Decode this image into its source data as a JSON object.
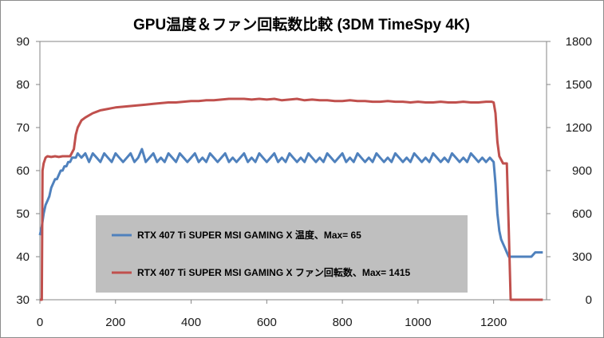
{
  "chart_data": {
    "type": "line",
    "title": "GPU温度＆ファン回転数比較 (3DM TimeSpy 4K)",
    "xlabel": "",
    "ylabel": "",
    "y2label": "",
    "xlim": [
      0,
      1340
    ],
    "ylim": [
      30,
      90
    ],
    "y2lim": [
      0,
      1800
    ],
    "x_ticks": [
      "0",
      "200",
      "400",
      "600",
      "800",
      "1000",
      "1200"
    ],
    "x_tick_values": [
      0,
      200,
      400,
      600,
      800,
      1000,
      1200
    ],
    "y_ticks": [
      "30",
      "40",
      "50",
      "60",
      "70",
      "80",
      "90"
    ],
    "y_tick_values": [
      30,
      40,
      50,
      60,
      70,
      80,
      90
    ],
    "y2_ticks": [
      "0",
      "300",
      "600",
      "900",
      "1200",
      "1500",
      "1800"
    ],
    "y2_tick_values": [
      0,
      300,
      600,
      900,
      1200,
      1500,
      1800
    ],
    "grid": false,
    "legend_position": "center-left",
    "series": [
      {
        "name": "RTX 407 Ti SUPER MSI GAMING X 温度、Max= 65",
        "axis": "left",
        "color": "#4f81bd",
        "x": [
          0,
          5,
          10,
          15,
          20,
          25,
          30,
          35,
          40,
          45,
          50,
          55,
          60,
          65,
          70,
          75,
          80,
          85,
          90,
          95,
          100,
          110,
          120,
          130,
          140,
          150,
          160,
          170,
          180,
          190,
          200,
          210,
          220,
          230,
          240,
          250,
          260,
          270,
          280,
          290,
          300,
          310,
          320,
          330,
          340,
          350,
          360,
          370,
          380,
          390,
          400,
          410,
          420,
          430,
          440,
          450,
          460,
          470,
          480,
          490,
          500,
          510,
          520,
          530,
          540,
          550,
          560,
          570,
          580,
          590,
          600,
          610,
          620,
          630,
          640,
          650,
          660,
          670,
          680,
          690,
          700,
          710,
          720,
          730,
          740,
          750,
          760,
          770,
          780,
          790,
          800,
          810,
          820,
          830,
          840,
          850,
          860,
          870,
          880,
          890,
          900,
          910,
          920,
          930,
          940,
          950,
          960,
          970,
          980,
          990,
          1000,
          1010,
          1020,
          1030,
          1040,
          1050,
          1060,
          1070,
          1080,
          1090,
          1100,
          1110,
          1120,
          1130,
          1140,
          1150,
          1160,
          1170,
          1180,
          1190,
          1200,
          1205,
          1210,
          1215,
          1220,
          1225,
          1230,
          1235,
          1240,
          1250,
          1260,
          1270,
          1280,
          1290,
          1300,
          1310,
          1320,
          1330
        ],
        "values": [
          45,
          47,
          50,
          52,
          53,
          54,
          56,
          57,
          58,
          58,
          59,
          60,
          60,
          61,
          61,
          62,
          62,
          63,
          63,
          63,
          64,
          63,
          64,
          62,
          64,
          63,
          62,
          64,
          63,
          62,
          64,
          63,
          62,
          63,
          64,
          62,
          63,
          65,
          62,
          63,
          64,
          62,
          63,
          62,
          64,
          63,
          62,
          64,
          63,
          62,
          63,
          64,
          62,
          63,
          62,
          64,
          63,
          62,
          63,
          64,
          62,
          63,
          62,
          63,
          64,
          62,
          63,
          62,
          64,
          63,
          62,
          63,
          64,
          62,
          63,
          62,
          64,
          63,
          62,
          63,
          62,
          64,
          63,
          62,
          63,
          62,
          64,
          63,
          62,
          63,
          64,
          62,
          63,
          62,
          64,
          63,
          62,
          63,
          62,
          64,
          63,
          62,
          63,
          62,
          64,
          63,
          62,
          63,
          62,
          64,
          63,
          62,
          63,
          62,
          64,
          63,
          62,
          63,
          62,
          64,
          63,
          62,
          63,
          62,
          64,
          63,
          62,
          63,
          62,
          63,
          62,
          57,
          50,
          46,
          44,
          43,
          42,
          41,
          40,
          40,
          40,
          40,
          40,
          40,
          40,
          41,
          41,
          41
        ]
      },
      {
        "name": "RTX 407 Ti SUPER MSI GAMING X ファン回転数、Max= 1415",
        "axis": "right",
        "color": "#c0504d",
        "x": [
          0,
          5,
          7,
          10,
          15,
          20,
          30,
          40,
          50,
          60,
          70,
          80,
          90,
          95,
          100,
          110,
          120,
          130,
          140,
          150,
          160,
          170,
          180,
          190,
          200,
          220,
          240,
          260,
          280,
          300,
          320,
          340,
          360,
          380,
          400,
          420,
          440,
          460,
          480,
          500,
          520,
          540,
          560,
          580,
          600,
          620,
          640,
          660,
          680,
          700,
          720,
          740,
          760,
          780,
          800,
          820,
          840,
          860,
          880,
          900,
          920,
          940,
          960,
          980,
          1000,
          1020,
          1040,
          1060,
          1080,
          1100,
          1120,
          1140,
          1160,
          1180,
          1195,
          1200,
          1205,
          1210,
          1215,
          1225,
          1235,
          1240,
          1245,
          1260,
          1280,
          1300,
          1320,
          1330
        ],
        "values": [
          0,
          0,
          900,
          950,
          990,
          1000,
          995,
          1000,
          995,
          1000,
          1000,
          1000,
          1050,
          1150,
          1200,
          1250,
          1270,
          1285,
          1300,
          1310,
          1320,
          1325,
          1330,
          1335,
          1340,
          1345,
          1350,
          1355,
          1360,
          1365,
          1370,
          1375,
          1375,
          1380,
          1385,
          1385,
          1390,
          1390,
          1395,
          1400,
          1400,
          1400,
          1395,
          1400,
          1395,
          1400,
          1390,
          1395,
          1400,
          1390,
          1395,
          1390,
          1390,
          1385,
          1385,
          1390,
          1385,
          1385,
          1380,
          1380,
          1385,
          1380,
          1380,
          1375,
          1380,
          1375,
          1375,
          1380,
          1375,
          1375,
          1380,
          1375,
          1375,
          1380,
          1380,
          1375,
          1300,
          1100,
          1000,
          950,
          950,
          500,
          0,
          0,
          0,
          0,
          0,
          0
        ]
      }
    ]
  }
}
